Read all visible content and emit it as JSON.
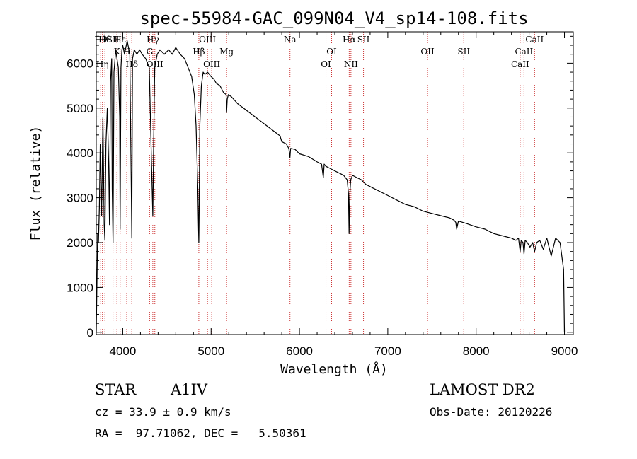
{
  "chart_data": {
    "type": "line",
    "title": "spec-55984-GAC_099N04_V4_sp14-108.fits",
    "xlabel": "Wavelength (Å)",
    "ylabel": "Flux (relative)",
    "xlim": [
      3700,
      9100
    ],
    "ylim": [
      -50,
      6700
    ],
    "x_ticks": [
      4000,
      5000,
      6000,
      7000,
      8000,
      9000
    ],
    "y_ticks": [
      0,
      1000,
      2000,
      3000,
      4000,
      5000,
      6000
    ],
    "grid": false,
    "series": [
      {
        "color": "#000000",
        "x": [
          3700,
          3715,
          3725,
          3735,
          3745,
          3760,
          3775,
          3790,
          3798,
          3810,
          3825,
          3840,
          3850,
          3862,
          3875,
          3880,
          3890,
          3900,
          3920,
          3935,
          3950,
          3965,
          3970,
          3980,
          3990,
          4000,
          4020,
          4050,
          4080,
          4095,
          4102,
          4110,
          4130,
          4160,
          4190,
          4220,
          4260,
          4300,
          4320,
          4340,
          4352,
          4362,
          4390,
          4420,
          4470,
          4520,
          4560,
          4600,
          4650,
          4700,
          4740,
          4780,
          4810,
          4830,
          4850,
          4858,
          4861,
          4865,
          4872,
          4890,
          4910,
          4930,
          4960,
          5000,
          5030,
          5060,
          5100,
          5140,
          5170,
          5175,
          5183,
          5195,
          5230,
          5300,
          5400,
          5500,
          5600,
          5700,
          5780,
          5800,
          5850,
          5880,
          5893,
          5900,
          5950,
          6000,
          6100,
          6200,
          6250,
          6270,
          6280,
          6300,
          6350,
          6400,
          6450,
          6500,
          6540,
          6555,
          6562,
          6568,
          6580,
          6600,
          6650,
          6700,
          6750,
          6800,
          6900,
          7000,
          7100,
          7200,
          7300,
          7400,
          7500,
          7600,
          7700,
          7750,
          7770,
          7780,
          7800,
          7900,
          8000,
          8100,
          8200,
          8300,
          8400,
          8450,
          8480,
          8498,
          8510,
          8530,
          8542,
          8555,
          8580,
          8610,
          8640,
          8662,
          8685,
          8720,
          8760,
          8800,
          8850,
          8900,
          8950,
          8990,
          9000
        ],
        "y": [
          0,
          2200,
          2000,
          2800,
          4200,
          2600,
          4800,
          2400,
          2050,
          4200,
          5000,
          3800,
          2400,
          5600,
          6100,
          3200,
          2000,
          5800,
          6300,
          6100,
          5900,
          4800,
          2300,
          5900,
          6300,
          6400,
          6200,
          6500,
          6200,
          3500,
          2100,
          6100,
          6300,
          6200,
          6300,
          6200,
          6100,
          5900,
          4200,
          2600,
          4600,
          5900,
          6200,
          6300,
          6200,
          6300,
          6200,
          6350,
          6200,
          6100,
          5900,
          5700,
          5300,
          4600,
          3200,
          2300,
          2000,
          2700,
          4600,
          5500,
          5800,
          5750,
          5800,
          5700,
          5650,
          5550,
          5500,
          5350,
          5300,
          4900,
          5200,
          5300,
          5250,
          5100,
          4950,
          4800,
          4650,
          4500,
          4380,
          4250,
          4200,
          4100,
          3900,
          4100,
          4080,
          3980,
          3920,
          3800,
          3750,
          3450,
          3750,
          3700,
          3650,
          3600,
          3550,
          3500,
          3400,
          3100,
          2200,
          3000,
          3400,
          3500,
          3450,
          3400,
          3300,
          3250,
          3150,
          3050,
          2950,
          2850,
          2800,
          2700,
          2650,
          2600,
          2550,
          2500,
          2450,
          2300,
          2480,
          2420,
          2350,
          2300,
          2200,
          2150,
          2100,
          2050,
          2100,
          1800,
          2050,
          2000,
          1750,
          2050,
          2000,
          1900,
          2000,
          1800,
          2000,
          2050,
          1850,
          2100,
          1700,
          2100,
          2000,
          1400,
          0
        ]
      }
    ],
    "line_markers": [
      {
        "wave": 3750,
        "label": "Hθ",
        "row": 0
      },
      {
        "wave": 3770,
        "label": "Hη",
        "row": 3
      },
      {
        "wave": 3798,
        "label": "Hθ",
        "row": 0
      },
      {
        "wave": 3889,
        "label": "SII",
        "row": 0
      },
      {
        "wave": 3934,
        "label": "K",
        "row": 1
      },
      {
        "wave": 3970,
        "label": "Hε",
        "row": 0
      },
      {
        "wave": 4045,
        "label": "H",
        "row": 1
      },
      {
        "wave": 4102,
        "label": "Hδ",
        "row": 2
      },
      {
        "wave": 4304,
        "label": "G",
        "row": 1
      },
      {
        "wave": 4340,
        "label": "Hγ",
        "row": 0
      },
      {
        "wave": 4363,
        "label": "OIII",
        "row": 2
      },
      {
        "wave": 4861,
        "label": "Hβ",
        "row": 1
      },
      {
        "wave": 4959,
        "label": "OIII",
        "row": 0
      },
      {
        "wave": 5007,
        "label": "OIII",
        "row": 2
      },
      {
        "wave": 5175,
        "label": "Mg",
        "row": 1
      },
      {
        "wave": 5893,
        "label": "Na",
        "row": 0
      },
      {
        "wave": 6300,
        "label": "OI",
        "row": 2
      },
      {
        "wave": 6364,
        "label": "OI",
        "row": 1
      },
      {
        "wave": 6563,
        "label": "Hα",
        "row": 0
      },
      {
        "wave": 6583,
        "label": "NII",
        "row": 2
      },
      {
        "wave": 6725,
        "label": "SII",
        "row": 0
      },
      {
        "wave": 7450,
        "label": "OII",
        "row": 1
      },
      {
        "wave": 7860,
        "label": "SII",
        "row": 1
      },
      {
        "wave": 8498,
        "label": "CaII",
        "row": 2
      },
      {
        "wave": 8542,
        "label": "CaII",
        "row": 1
      },
      {
        "wave": 8662,
        "label": "CaII",
        "row": 0
      }
    ]
  },
  "info": {
    "object_type": "STAR",
    "subclass": "A1IV",
    "cz_text": "cz = 33.9 ± 0.9 km/s",
    "coords_text": "RA =  97.71062, DEC =   5.50361",
    "survey": "LAMOST DR2",
    "obs_date_text": "Obs-Date: 20120226"
  }
}
